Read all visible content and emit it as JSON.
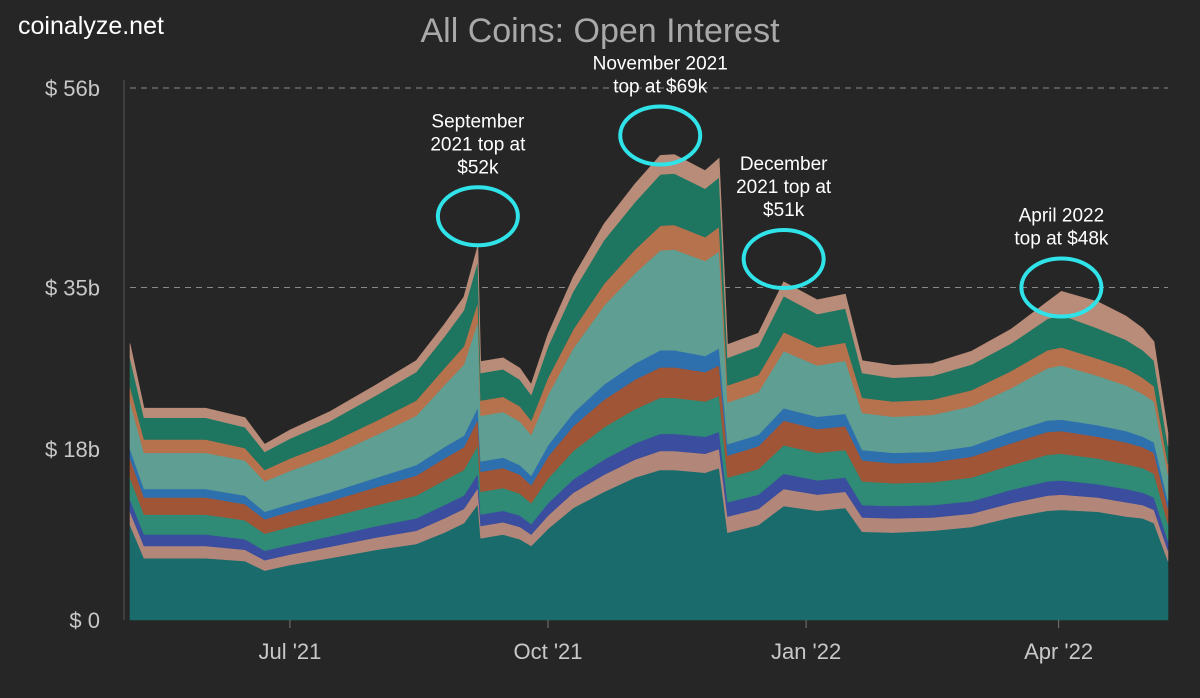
{
  "brand": "coinalyze.net",
  "colors": {
    "background": "#262626",
    "grid": "#8a8a8a",
    "axis_text": "#c8c8c8",
    "annotation_text": "#ffffff",
    "highlight_circle": "#2fe3e9"
  },
  "chart_data": {
    "type": "area",
    "stacked": true,
    "title": "All Coins: Open Interest",
    "xlabel": "",
    "ylabel": "",
    "ylim": [
      0,
      56
    ],
    "y_unit": "USD billions",
    "y_ticks": [
      {
        "value": 0,
        "label": "$ 0"
      },
      {
        "value": 18,
        "label": "$ 18b"
      },
      {
        "value": 35,
        "label": "$ 35b"
      },
      {
        "value": 56,
        "label": "$ 56b"
      }
    ],
    "x_range": [
      "2021-05-05",
      "2022-05-10"
    ],
    "x_ticks": [
      {
        "date": "2021-07-01",
        "label": "Jul '21"
      },
      {
        "date": "2021-10-01",
        "label": "Oct '21"
      },
      {
        "date": "2022-01-01",
        "label": "Jan '22"
      },
      {
        "date": "2022-04-01",
        "label": "Apr '22"
      }
    ],
    "grid": "horizontal dashed at 35 and 56",
    "legend": "none",
    "x": [
      "2021-05-05",
      "2021-05-10",
      "2021-05-20",
      "2021-06-01",
      "2021-06-15",
      "2021-06-22",
      "2021-07-01",
      "2021-07-15",
      "2021-08-01",
      "2021-08-15",
      "2021-08-25",
      "2021-09-01",
      "2021-09-06",
      "2021-09-07",
      "2021-09-15",
      "2021-09-21",
      "2021-09-25",
      "2021-10-01",
      "2021-10-10",
      "2021-10-21",
      "2021-11-01",
      "2021-11-10",
      "2021-11-15",
      "2021-11-26",
      "2021-12-01",
      "2021-12-04",
      "2021-12-15",
      "2021-12-24",
      "2022-01-05",
      "2022-01-15",
      "2022-01-21",
      "2022-02-01",
      "2022-02-15",
      "2022-03-01",
      "2022-03-15",
      "2022-03-28",
      "2022-04-02",
      "2022-04-15",
      "2022-04-25",
      "2022-05-01",
      "2022-05-05",
      "2022-05-10"
    ],
    "series": [
      {
        "color": "#1a6b6b",
        "values": [
          10,
          6.5,
          6.5,
          6.5,
          6.2,
          5.2,
          5.8,
          6.5,
          7.4,
          8,
          9.2,
          10.2,
          12.2,
          8.6,
          9,
          8.5,
          7.8,
          9.6,
          11.8,
          13.5,
          15,
          15.8,
          15.8,
          15.5,
          16,
          9.2,
          10,
          12,
          11.5,
          11.8,
          9.3,
          9.2,
          9.4,
          9.8,
          10.8,
          11.5,
          11.6,
          11.4,
          10.9,
          10.7,
          10.2,
          6.2
        ]
      },
      {
        "color": "#b3867a",
        "values": [
          1.4,
          1.3,
          1.3,
          1.3,
          1.2,
          1.1,
          1.1,
          1.2,
          1.3,
          1.4,
          1.5,
          1.5,
          1.7,
          1.3,
          1.3,
          1.3,
          1.2,
          1.4,
          1.6,
          1.8,
          1.9,
          2,
          2,
          2,
          2,
          1.7,
          1.7,
          1.8,
          1.7,
          1.7,
          1.5,
          1.5,
          1.4,
          1.4,
          1.5,
          1.6,
          1.6,
          1.5,
          1.5,
          1.4,
          1.4,
          1.1
        ]
      },
      {
        "color": "#3a4d9e",
        "values": [
          1.3,
          1.2,
          1.2,
          1.2,
          1.1,
          1,
          1,
          1.1,
          1.2,
          1.3,
          1.4,
          1.4,
          1.5,
          1.2,
          1.2,
          1.2,
          1.1,
          1.3,
          1.4,
          1.6,
          1.7,
          1.8,
          1.8,
          1.8,
          1.8,
          1.5,
          1.5,
          1.6,
          1.5,
          1.5,
          1.3,
          1.3,
          1.3,
          1.3,
          1.4,
          1.5,
          1.5,
          1.4,
          1.4,
          1.3,
          1.3,
          1
        ]
      },
      {
        "color": "#2f8a76",
        "values": [
          2.3,
          2.1,
          2.1,
          2.1,
          2,
          1.8,
          1.9,
          2,
          2.2,
          2.4,
          2.6,
          2.7,
          3,
          2.4,
          2.4,
          2.3,
          2.2,
          2.6,
          3,
          3.4,
          3.6,
          3.8,
          3.8,
          3.7,
          3.8,
          2.6,
          2.7,
          3,
          2.9,
          2.9,
          2.5,
          2.4,
          2.4,
          2.5,
          2.6,
          2.8,
          2.8,
          2.7,
          2.6,
          2.6,
          2.5,
          1.8
        ]
      },
      {
        "color": "#a05536",
        "values": [
          2,
          1.8,
          1.8,
          1.8,
          1.7,
          1.5,
          1.6,
          1.7,
          1.9,
          2.1,
          2.3,
          2.4,
          2.7,
          2.1,
          2.1,
          2,
          1.9,
          2.3,
          2.6,
          2.9,
          3.1,
          3.2,
          3.2,
          3.1,
          3.2,
          2.3,
          2.4,
          2.6,
          2.5,
          2.5,
          2.2,
          2.1,
          2.1,
          2.2,
          2.3,
          2.4,
          2.4,
          2.3,
          2.3,
          2.2,
          2.2,
          1.6
        ]
      },
      {
        "color": "#2e6fae",
        "values": [
          1,
          0.9,
          0.9,
          0.9,
          0.9,
          0.8,
          0.8,
          0.9,
          1,
          1.1,
          1.2,
          1.2,
          1.3,
          1.1,
          1.1,
          1,
          1,
          1.2,
          1.4,
          1.6,
          1.7,
          1.8,
          1.8,
          1.7,
          1.8,
          1.2,
          1.2,
          1.3,
          1.3,
          1.3,
          1.1,
          1.1,
          1.1,
          1.1,
          1.2,
          1.2,
          1.2,
          1.2,
          1.2,
          1.1,
          1.1,
          0.8
        ]
      },
      {
        "color": "#5f9e93",
        "values": [
          5,
          3.8,
          3.8,
          3.8,
          3.7,
          3.2,
          3.5,
          3.8,
          4.5,
          5.2,
          6.5,
          7.5,
          9,
          4.8,
          4.8,
          4.6,
          4.3,
          5.3,
          6.8,
          8.3,
          9.5,
          10.5,
          10.6,
          10,
          10.2,
          4.4,
          4.5,
          6,
          5.4,
          5.6,
          3.9,
          3.8,
          3.9,
          4.2,
          4.6,
          5.5,
          5.7,
          5.2,
          4.8,
          4.5,
          4.3,
          2.8
        ]
      },
      {
        "color": "#b5724d",
        "values": [
          1.6,
          1.4,
          1.4,
          1.4,
          1.3,
          1.2,
          1.3,
          1.4,
          1.5,
          1.6,
          1.8,
          1.9,
          2.1,
          1.6,
          1.6,
          1.6,
          1.5,
          1.8,
          2,
          2.3,
          2.5,
          2.6,
          2.6,
          2.5,
          2.6,
          1.8,
          1.8,
          2,
          1.9,
          1.9,
          1.6,
          1.6,
          1.6,
          1.7,
          1.8,
          1.9,
          1.9,
          1.8,
          1.8,
          1.7,
          1.6,
          1.1
        ]
      },
      {
        "color": "#1e7560",
        "values": [
          3,
          2.3,
          2.3,
          2.3,
          2.2,
          1.9,
          2.1,
          2.3,
          2.7,
          3,
          3.3,
          3.8,
          4.3,
          2.9,
          2.9,
          2.8,
          2.7,
          3.3,
          4,
          4.6,
          5,
          5.4,
          5.4,
          5.1,
          5.2,
          2.9,
          3,
          3.8,
          3.5,
          3.6,
          2.6,
          2.5,
          2.5,
          2.7,
          2.9,
          3.3,
          3.4,
          3.2,
          3,
          2.9,
          2.7,
          1.9
        ]
      },
      {
        "color": "#b88c78",
        "values": [
          1.5,
          1,
          1,
          1,
          1,
          0.8,
          0.9,
          1,
          1.1,
          1.2,
          1.3,
          1.4,
          1.6,
          1.2,
          1.2,
          1.2,
          1.1,
          1.3,
          1.5,
          1.7,
          1.9,
          2,
          2,
          1.9,
          2,
          1.4,
          1.4,
          1.5,
          1.5,
          1.5,
          1.3,
          1.3,
          1.3,
          1.4,
          1.5,
          1.8,
          2.5,
          2.8,
          2.5,
          2.3,
          2,
          1.4
        ]
      }
    ],
    "annotations": [
      {
        "lines": [
          "September",
          "2021 top at",
          "$52k"
        ],
        "date": "2021-09-06",
        "value": 42.5
      },
      {
        "lines": [
          "November 2021",
          "top at $69k"
        ],
        "date": "2021-11-10",
        "value": 51
      },
      {
        "lines": [
          "December",
          "2021 top at",
          "$51k"
        ],
        "date": "2021-12-24",
        "value": 38
      },
      {
        "lines": [
          "April 2022",
          "top at $48k"
        ],
        "date": "2022-04-02",
        "value": 35
      }
    ]
  }
}
